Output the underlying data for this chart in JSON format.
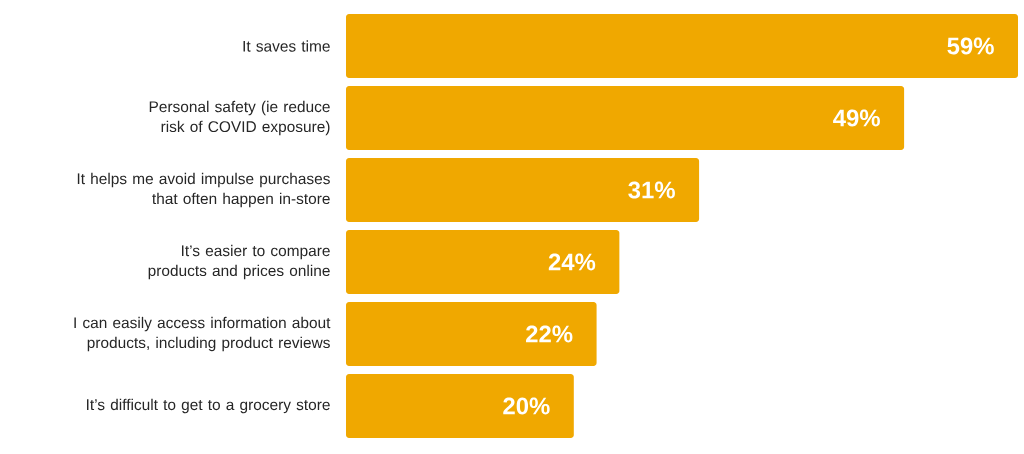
{
  "chart_data": {
    "type": "bar",
    "orientation": "horizontal",
    "categories": [
      "It saves time",
      "Personal safety (ie reduce risk of COVID exposure)",
      "It helps me avoid impulse purchases that often happen in-store",
      "It’s easier to compare products and prices online",
      "I can easily access information about products, including product reviews",
      "It’s difficult to get to a grocery store"
    ],
    "values": [
      59,
      49,
      31,
      24,
      22,
      20
    ],
    "color": "#f0a800",
    "data_labels": true,
    "value_labels": [
      "59%",
      "49%",
      "31%",
      "24%",
      "22%",
      "20%"
    ],
    "xlim": [
      0,
      59
    ]
  }
}
